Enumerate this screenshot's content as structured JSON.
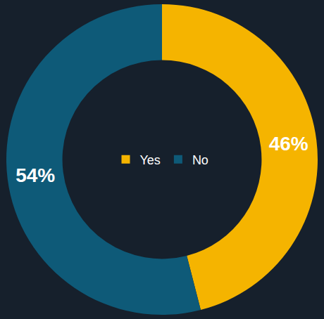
{
  "chart_data": {
    "type": "pie",
    "categories": [
      "Yes",
      "No"
    ],
    "values": [
      46,
      54
    ],
    "value_labels": [
      "46%",
      "54%"
    ],
    "colors": [
      "#f5b400",
      "#0e5a78"
    ],
    "data_labels": true,
    "legend": "center"
  }
}
